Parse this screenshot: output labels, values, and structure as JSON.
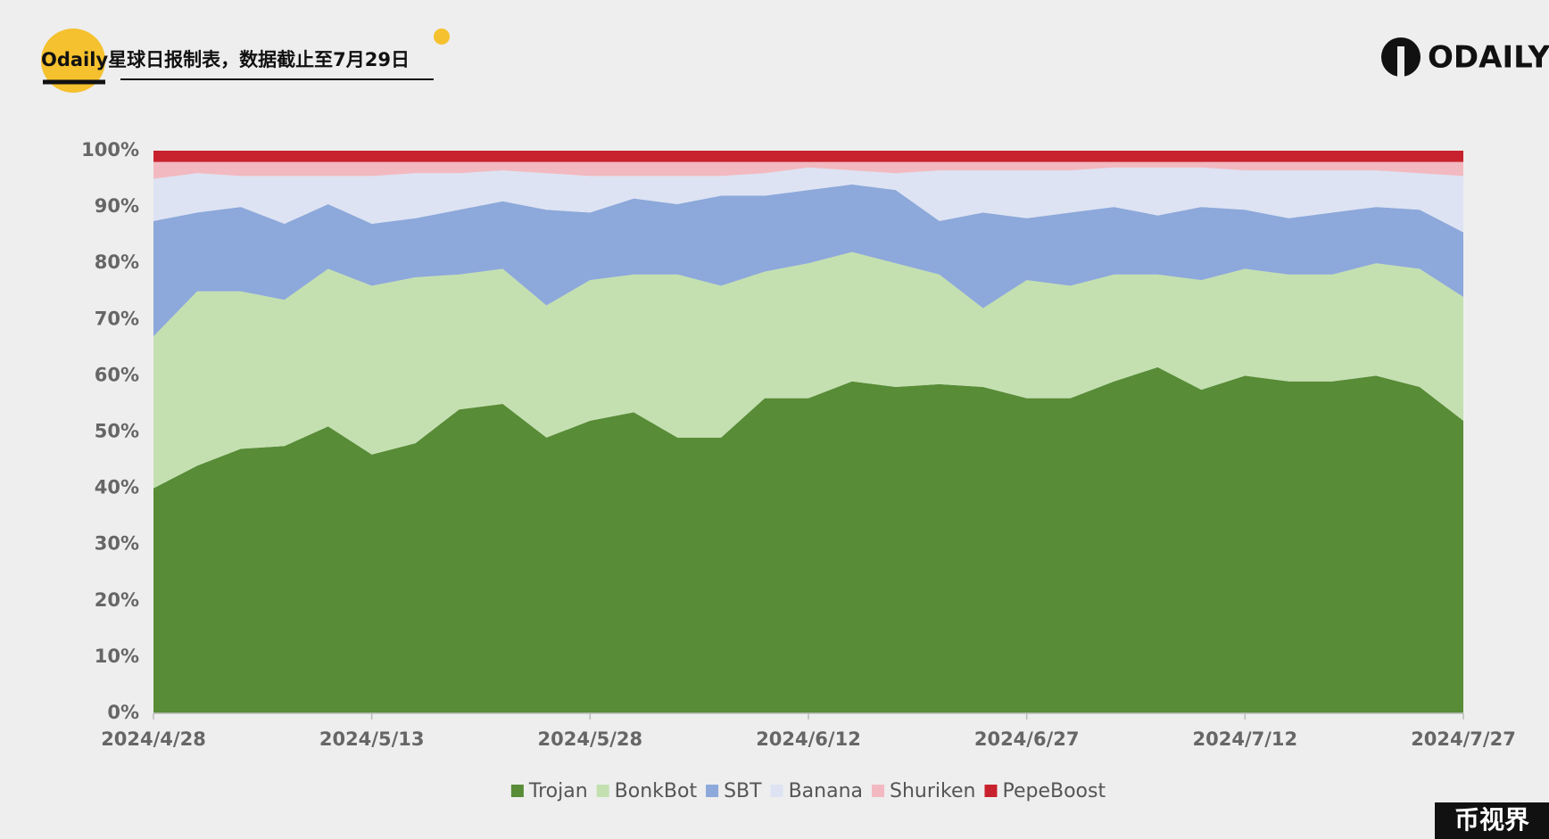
{
  "chart_data": {
    "type": "stacked_area",
    "title": "Odaily星球日报制表，数据截止至7月29日",
    "logo": "ODAILY",
    "corner_label": "币视界",
    "categories": [
      "2024/4/28",
      null,
      null,
      null,
      null,
      "2024/5/13",
      null,
      null,
      null,
      null,
      "2024/5/28",
      null,
      null,
      null,
      null,
      "2024/6/12",
      null,
      null,
      null,
      null,
      "2024/6/27",
      null,
      null,
      null,
      null,
      "2024/7/12",
      null,
      null,
      null,
      null,
      "2024/7/27"
    ],
    "ylim": [
      0,
      100
    ],
    "yticks": [
      {
        "value": 0,
        "label": "0%"
      },
      {
        "value": 10,
        "label": "10%"
      },
      {
        "value": 20,
        "label": "20%"
      },
      {
        "value": 30,
        "label": "30%"
      },
      {
        "value": 40,
        "label": "40%"
      },
      {
        "value": 50,
        "label": "50%"
      },
      {
        "value": 60,
        "label": "60%"
      },
      {
        "value": 70,
        "label": "70%"
      },
      {
        "value": 80,
        "label": "80%"
      },
      {
        "value": 90,
        "label": "90%"
      },
      {
        "value": 100,
        "label": "100%"
      }
    ],
    "grid": false,
    "legend": "bottom",
    "series": [
      {
        "name": "Trojan",
        "color": "#588c37",
        "values": [
          40,
          44,
          47,
          47.5,
          51,
          46,
          48,
          54,
          55,
          49,
          52,
          53.5,
          49,
          49,
          56,
          56,
          59,
          58,
          58.5,
          58,
          56,
          56,
          59,
          61.5,
          57.5,
          60,
          59,
          59,
          60,
          58,
          52
        ]
      },
      {
        "name": "BonkBot",
        "color": "#c4e0b0",
        "values": [
          27,
          31,
          28,
          26,
          28,
          30,
          29.5,
          24,
          24,
          23.5,
          25,
          24.5,
          29,
          27,
          22.5,
          24,
          23,
          22,
          19.5,
          14,
          21,
          20,
          19,
          16.5,
          19.5,
          19,
          19,
          19,
          20,
          21,
          22
        ]
      },
      {
        "name": "SBT",
        "color": "#8da8da",
        "values": [
          20.5,
          14,
          15,
          13.5,
          11.5,
          11,
          10.5,
          11.5,
          12,
          17,
          12,
          13.5,
          12.5,
          16,
          13.5,
          13,
          12,
          13,
          9.5,
          17,
          11,
          13,
          12,
          10.5,
          13,
          10.5,
          10,
          11,
          10,
          10.5,
          11.5
        ]
      },
      {
        "name": "Banana",
        "color": "#dde3f3",
        "values": [
          7.5,
          7,
          5.5,
          8.5,
          5,
          8.5,
          8,
          6.5,
          5.5,
          6.5,
          6.5,
          4,
          5,
          3.5,
          4,
          4,
          2.5,
          3,
          9,
          7.5,
          8.5,
          7.5,
          7,
          8.5,
          7,
          7,
          8.5,
          7.5,
          6.5,
          6.5,
          10
        ]
      },
      {
        "name": "Shuriken",
        "color": "#f2b9c0",
        "values": [
          3,
          2,
          2.5,
          2.5,
          2.5,
          2.5,
          2,
          2,
          1.5,
          2,
          2.5,
          2.5,
          2.5,
          2.5,
          2,
          1,
          1.5,
          2,
          1.5,
          1.5,
          1.5,
          1.5,
          1,
          1,
          1,
          1.5,
          1.5,
          1.5,
          1.5,
          2,
          2.5
        ]
      },
      {
        "name": "PepeBoost",
        "color": "#c8222e",
        "values": [
          2,
          2,
          2,
          2,
          2,
          2,
          2,
          2,
          2,
          2,
          2,
          2,
          2,
          2,
          2,
          2,
          2,
          2,
          2,
          2,
          2,
          2,
          2,
          2,
          2,
          2,
          2,
          2,
          2,
          2,
          2
        ]
      }
    ]
  }
}
